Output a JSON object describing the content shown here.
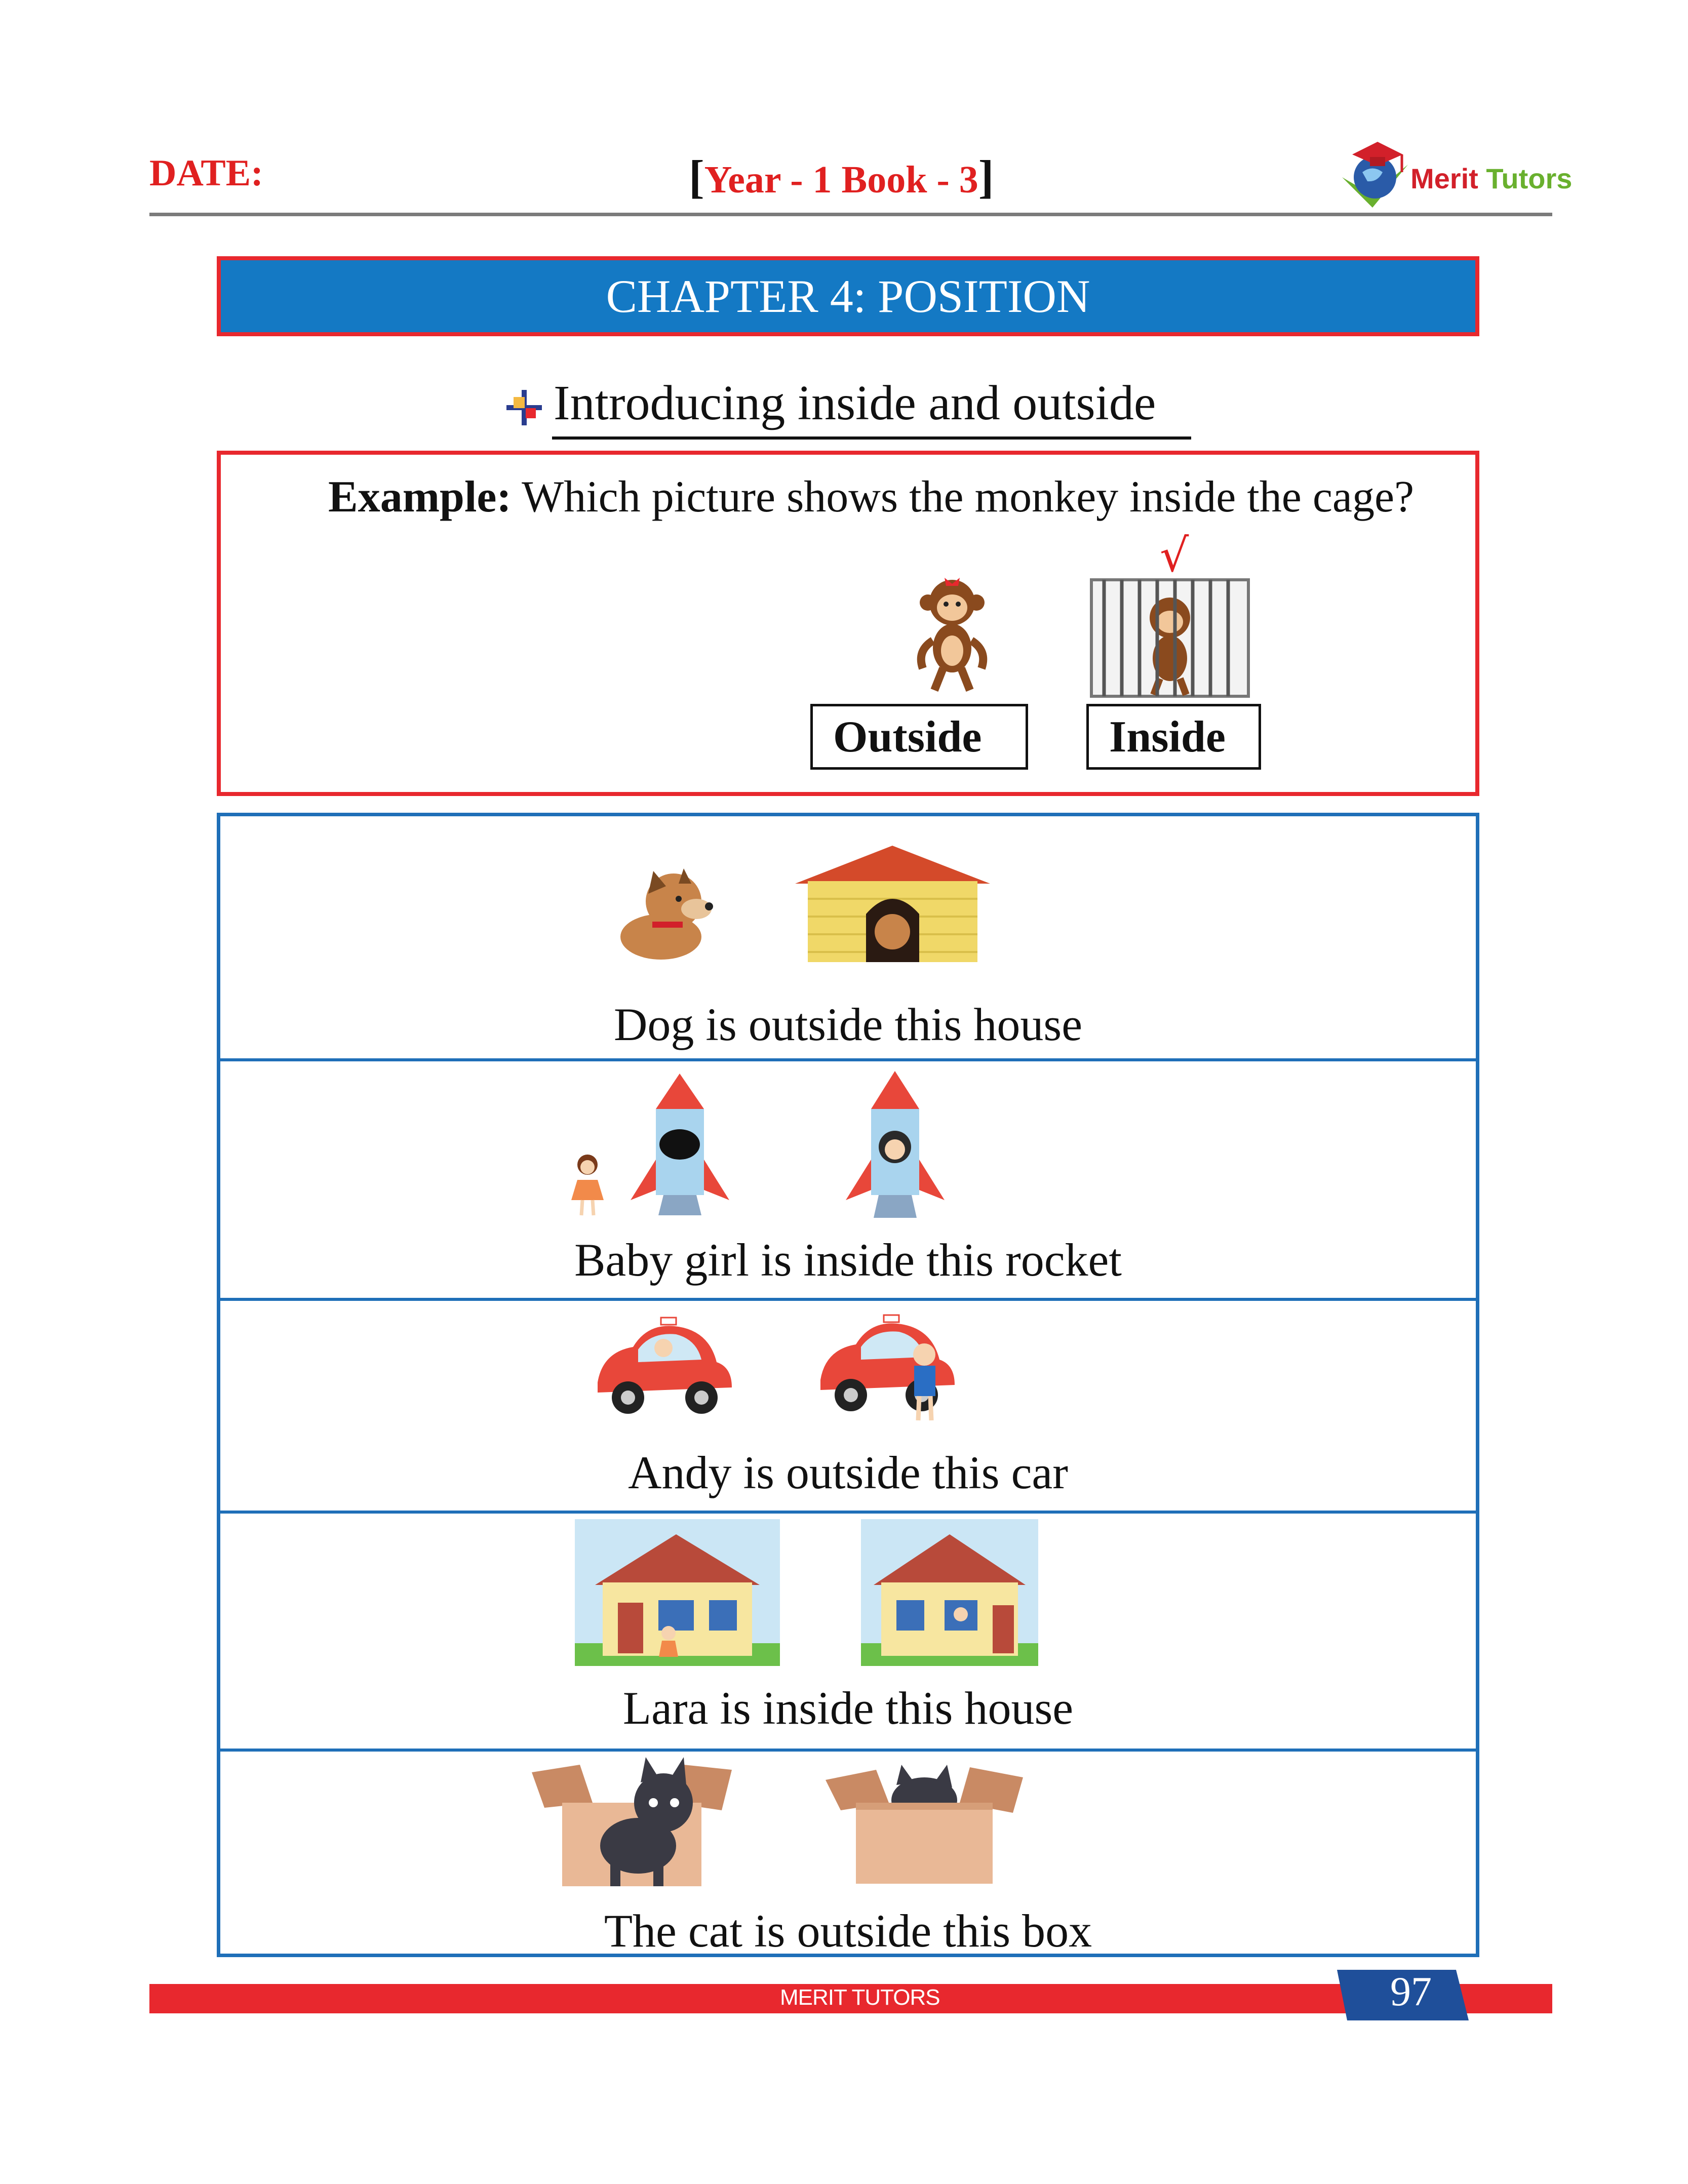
{
  "header": {
    "date_label": "DATE:",
    "book_open": "[",
    "book_label": "Year - 1 Book - 3",
    "book_close": "]",
    "logo_merit": "Merit",
    "logo_tutors": "Tutors"
  },
  "chapter_title": "CHAPTER 4:  POSITION",
  "subheading": "Introducing inside and outside",
  "example": {
    "label": "Example:",
    "question": " Which picture shows the monkey inside the cage?",
    "check_mark": "√",
    "options": [
      "Outside",
      "Inside"
    ]
  },
  "rows": [
    {
      "caption": "Dog is outside this house"
    },
    {
      "caption": "Baby girl is inside this rocket"
    },
    {
      "caption": "Andy is outside this car"
    },
    {
      "caption": "Lara is inside this house"
    },
    {
      "caption": "The cat is outside this box"
    }
  ],
  "footer": {
    "brand": "MERIT TUTORS",
    "page_number": "97"
  },
  "colors": {
    "red": "#e8282e",
    "blue": "#1479c4",
    "green": "#69b02e"
  }
}
